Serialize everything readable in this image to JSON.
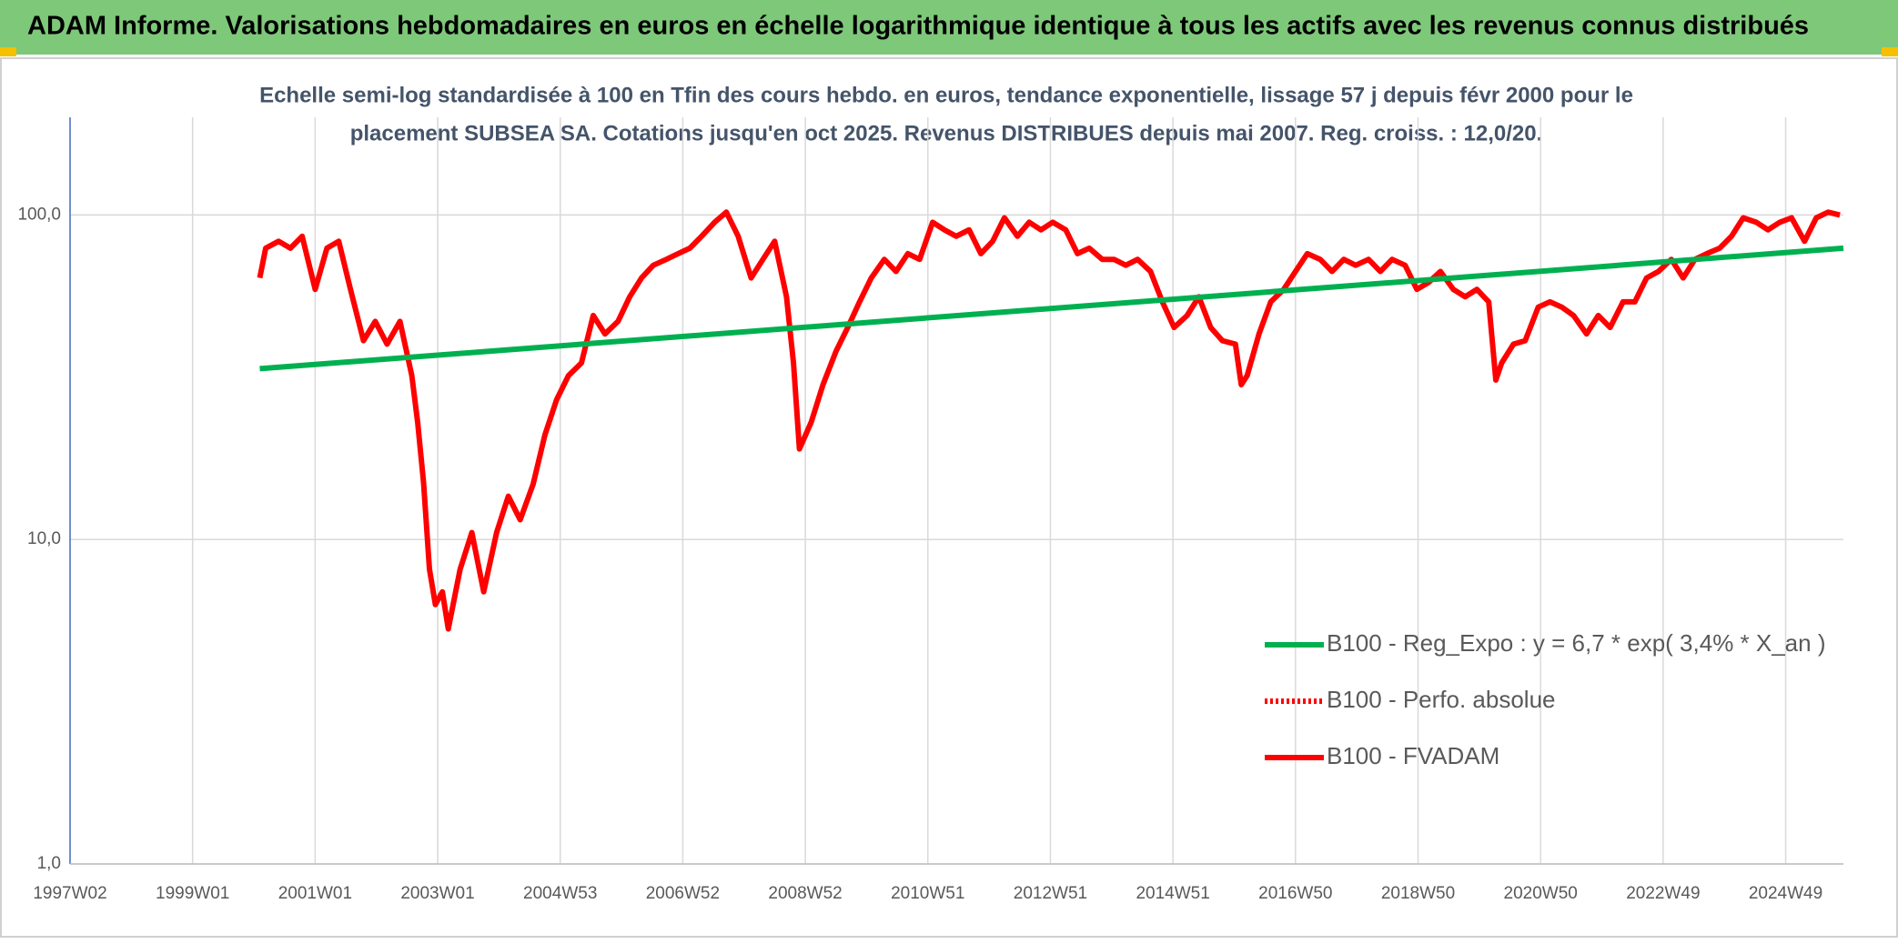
{
  "chart_data": {
    "type": "line",
    "title": "ADAM Informe. Valorisations hebdomadaires en euros en échelle logarithmique identique à tous les actifs avec les revenus connus distribués",
    "subtitle": [
      "Echelle semi-log standardisée à 100 en Tfin des cours hebdo. en euros, tendance exponentielle, lissage 57 j depuis févr 2000 pour le",
      "placement SUBSEA SA. Cotations jusqu'en oct 2025. Revenus DISTRIBUES depuis mai 2007. Reg. croiss. : 12,0/20."
    ],
    "log_y": true,
    "grid": true,
    "legend": "bottom-right",
    "xlim": [
      0,
      1505
    ],
    "xticks": [
      {
        "value": 0,
        "label": "1997W02"
      },
      {
        "value": 104,
        "label": "1999W01"
      },
      {
        "value": 208,
        "label": "2001W01"
      },
      {
        "value": 312,
        "label": "2003W01"
      },
      {
        "value": 416,
        "label": "2004W53"
      },
      {
        "value": 520,
        "label": "2006W52"
      },
      {
        "value": 624,
        "label": "2008W52"
      },
      {
        "value": 728,
        "label": "2010W51"
      },
      {
        "value": 832,
        "label": "2012W51"
      },
      {
        "value": 936,
        "label": "2014W51"
      },
      {
        "value": 1040,
        "label": "2016W50"
      },
      {
        "value": 1144,
        "label": "2018W50"
      },
      {
        "value": 1248,
        "label": "2020W50"
      },
      {
        "value": 1352,
        "label": "2022W49"
      },
      {
        "value": 1456,
        "label": "2024W49"
      }
    ],
    "ylim": [
      1,
      200
    ],
    "yticks": [
      {
        "value": 1,
        "label": "1,0"
      },
      {
        "value": 10,
        "label": "10,0"
      },
      {
        "value": 100,
        "label": "100,0"
      }
    ],
    "series": [
      {
        "name": "B100 - Reg_Expo : y = 6,7 * exp( 3,4% *  X_an )",
        "color": "#00b050",
        "dash": "solid",
        "x": [
          161,
          1505
        ],
        "values": [
          33.6,
          79
        ]
      },
      {
        "name": "B100 - Perfo. absolue",
        "color": "#ff0000",
        "dash": "dotted",
        "x": [],
        "values": []
      },
      {
        "name": "B100 - FVADAM",
        "color": "#ff0000",
        "dash": "solid",
        "x": [
          161,
          166,
          177,
          187,
          197,
          208,
          218,
          228,
          238,
          249,
          259,
          269,
          280,
          290,
          295,
          300,
          305,
          310,
          316,
          321,
          331,
          341,
          351,
          362,
          372,
          382,
          393,
          403,
          413,
          423,
          434,
          444,
          454,
          465,
          475,
          485,
          495,
          506,
          516,
          526,
          536,
          547,
          557,
          567,
          578,
          588,
          598,
          608,
          614,
          619,
          629,
          639,
          650,
          660,
          670,
          680,
          691,
          701,
          711,
          721,
          732,
          742,
          752,
          763,
          773,
          783,
          793,
          804,
          814,
          824,
          834,
          845,
          855,
          865,
          876,
          886,
          896,
          906,
          917,
          927,
          937,
          948,
          958,
          968,
          978,
          989,
          994,
          999,
          1009,
          1019,
          1030,
          1040,
          1050,
          1061,
          1071,
          1081,
          1091,
          1102,
          1112,
          1122,
          1133,
          1143,
          1153,
          1163,
          1174,
          1184,
          1194,
          1204,
          1210,
          1215,
          1225,
          1235,
          1246,
          1256,
          1266,
          1276,
          1287,
          1297,
          1307,
          1318,
          1328,
          1338,
          1348,
          1359,
          1369,
          1379,
          1389,
          1400,
          1410,
          1420,
          1431,
          1441,
          1451,
          1461,
          1472,
          1482,
          1492,
          1502
        ],
        "values": [
          64,
          79,
          83,
          79,
          86,
          59,
          79,
          83,
          59,
          41,
          47,
          40,
          47,
          32,
          23,
          15,
          8.1,
          6.3,
          6.9,
          5.3,
          8.1,
          10.5,
          6.9,
          10.5,
          13.6,
          11.5,
          14.8,
          21,
          27,
          32,
          35,
          49,
          43,
          47,
          56,
          64,
          70,
          73,
          76,
          79,
          86,
          95,
          102,
          86,
          64,
          73,
          83,
          56,
          35,
          19,
          23,
          30,
          38,
          45,
          54,
          64,
          73,
          67,
          76,
          73,
          95,
          90,
          86,
          90,
          76,
          83,
          98,
          86,
          95,
          90,
          95,
          90,
          76,
          79,
          73,
          73,
          70,
          73,
          67,
          54,
          45,
          49,
          56,
          45,
          41,
          40,
          30,
          32,
          43,
          54,
          59,
          67,
          76,
          73,
          67,
          73,
          70,
          73,
          67,
          73,
          70,
          59,
          62,
          67,
          59,
          56,
          59,
          54,
          31,
          35,
          40,
          41,
          52,
          54,
          52,
          49,
          43,
          49,
          45,
          54,
          54,
          64,
          67,
          73,
          64,
          73,
          76,
          79,
          86,
          98,
          95,
          90,
          95,
          98,
          83,
          98,
          102,
          100
        ]
      }
    ]
  }
}
